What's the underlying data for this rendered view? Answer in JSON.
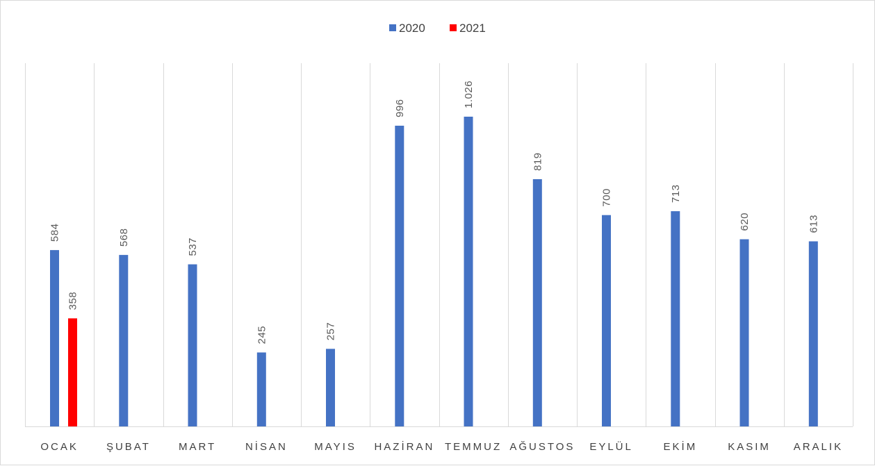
{
  "chart_data": {
    "type": "bar",
    "categories": [
      "OCAK",
      "ŞUBAT",
      "MART",
      "NİSAN",
      "MAYIS",
      "HAZİRAN",
      "TEMMUZ",
      "AĞUSTOS",
      "EYLÜL",
      "EKİM",
      "KASIM",
      "ARALIK"
    ],
    "series": [
      {
        "name": "2020",
        "color": "#4472c4",
        "values": [
          584,
          568,
          537,
          245,
          257,
          996,
          1026,
          819,
          700,
          713,
          620,
          613
        ],
        "labels": [
          "584",
          "568",
          "537",
          "245",
          "257",
          "996",
          "1.026",
          "819",
          "700",
          "713",
          "620",
          "613"
        ]
      },
      {
        "name": "2021",
        "color": "#ff0000",
        "values": [
          358,
          null,
          null,
          null,
          null,
          null,
          null,
          null,
          null,
          null,
          null,
          null
        ],
        "labels": [
          "358",
          "",
          "",
          "",
          "",
          "",
          "",
          "",
          "",
          "",
          "",
          ""
        ]
      }
    ],
    "ylim": [
      0,
      1100
    ],
    "xlabel": "",
    "ylabel": "",
    "title": "",
    "legend_position": "top-center",
    "gridlines": "vertical category separators",
    "value_axis_visible": false
  }
}
